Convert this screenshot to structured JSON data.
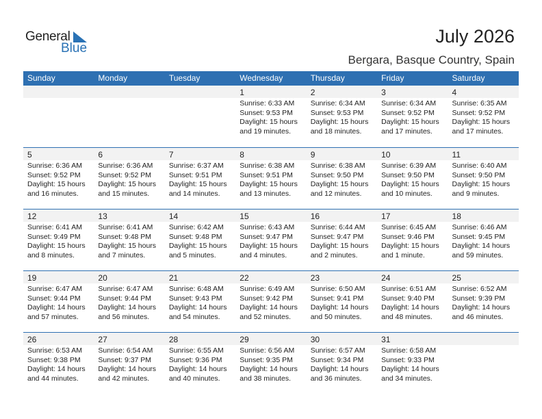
{
  "logo": {
    "general": "General",
    "blue": "Blue"
  },
  "header": {
    "title": "July 2026",
    "location": "Bergara, Basque Country, Spain"
  },
  "colors": {
    "accent": "#2e70b2",
    "daystrip": "#f2f2f2"
  },
  "weekdays": [
    "Sunday",
    "Monday",
    "Tuesday",
    "Wednesday",
    "Thursday",
    "Friday",
    "Saturday"
  ],
  "weeks": [
    [
      null,
      null,
      null,
      {
        "day": "1",
        "sunrise": "Sunrise: 6:33 AM",
        "sunset": "Sunset: 9:53 PM",
        "daylight1": "Daylight: 15 hours",
        "daylight2": "and 19 minutes."
      },
      {
        "day": "2",
        "sunrise": "Sunrise: 6:34 AM",
        "sunset": "Sunset: 9:53 PM",
        "daylight1": "Daylight: 15 hours",
        "daylight2": "and 18 minutes."
      },
      {
        "day": "3",
        "sunrise": "Sunrise: 6:34 AM",
        "sunset": "Sunset: 9:52 PM",
        "daylight1": "Daylight: 15 hours",
        "daylight2": "and 17 minutes."
      },
      {
        "day": "4",
        "sunrise": "Sunrise: 6:35 AM",
        "sunset": "Sunset: 9:52 PM",
        "daylight1": "Daylight: 15 hours",
        "daylight2": "and 17 minutes."
      }
    ],
    [
      {
        "day": "5",
        "sunrise": "Sunrise: 6:36 AM",
        "sunset": "Sunset: 9:52 PM",
        "daylight1": "Daylight: 15 hours",
        "daylight2": "and 16 minutes."
      },
      {
        "day": "6",
        "sunrise": "Sunrise: 6:36 AM",
        "sunset": "Sunset: 9:52 PM",
        "daylight1": "Daylight: 15 hours",
        "daylight2": "and 15 minutes."
      },
      {
        "day": "7",
        "sunrise": "Sunrise: 6:37 AM",
        "sunset": "Sunset: 9:51 PM",
        "daylight1": "Daylight: 15 hours",
        "daylight2": "and 14 minutes."
      },
      {
        "day": "8",
        "sunrise": "Sunrise: 6:38 AM",
        "sunset": "Sunset: 9:51 PM",
        "daylight1": "Daylight: 15 hours",
        "daylight2": "and 13 minutes."
      },
      {
        "day": "9",
        "sunrise": "Sunrise: 6:38 AM",
        "sunset": "Sunset: 9:50 PM",
        "daylight1": "Daylight: 15 hours",
        "daylight2": "and 12 minutes."
      },
      {
        "day": "10",
        "sunrise": "Sunrise: 6:39 AM",
        "sunset": "Sunset: 9:50 PM",
        "daylight1": "Daylight: 15 hours",
        "daylight2": "and 10 minutes."
      },
      {
        "day": "11",
        "sunrise": "Sunrise: 6:40 AM",
        "sunset": "Sunset: 9:50 PM",
        "daylight1": "Daylight: 15 hours",
        "daylight2": "and 9 minutes."
      }
    ],
    [
      {
        "day": "12",
        "sunrise": "Sunrise: 6:41 AM",
        "sunset": "Sunset: 9:49 PM",
        "daylight1": "Daylight: 15 hours",
        "daylight2": "and 8 minutes."
      },
      {
        "day": "13",
        "sunrise": "Sunrise: 6:41 AM",
        "sunset": "Sunset: 9:48 PM",
        "daylight1": "Daylight: 15 hours",
        "daylight2": "and 7 minutes."
      },
      {
        "day": "14",
        "sunrise": "Sunrise: 6:42 AM",
        "sunset": "Sunset: 9:48 PM",
        "daylight1": "Daylight: 15 hours",
        "daylight2": "and 5 minutes."
      },
      {
        "day": "15",
        "sunrise": "Sunrise: 6:43 AM",
        "sunset": "Sunset: 9:47 PM",
        "daylight1": "Daylight: 15 hours",
        "daylight2": "and 4 minutes."
      },
      {
        "day": "16",
        "sunrise": "Sunrise: 6:44 AM",
        "sunset": "Sunset: 9:47 PM",
        "daylight1": "Daylight: 15 hours",
        "daylight2": "and 2 minutes."
      },
      {
        "day": "17",
        "sunrise": "Sunrise: 6:45 AM",
        "sunset": "Sunset: 9:46 PM",
        "daylight1": "Daylight: 15 hours",
        "daylight2": "and 1 minute."
      },
      {
        "day": "18",
        "sunrise": "Sunrise: 6:46 AM",
        "sunset": "Sunset: 9:45 PM",
        "daylight1": "Daylight: 14 hours",
        "daylight2": "and 59 minutes."
      }
    ],
    [
      {
        "day": "19",
        "sunrise": "Sunrise: 6:47 AM",
        "sunset": "Sunset: 9:44 PM",
        "daylight1": "Daylight: 14 hours",
        "daylight2": "and 57 minutes."
      },
      {
        "day": "20",
        "sunrise": "Sunrise: 6:47 AM",
        "sunset": "Sunset: 9:44 PM",
        "daylight1": "Daylight: 14 hours",
        "daylight2": "and 56 minutes."
      },
      {
        "day": "21",
        "sunrise": "Sunrise: 6:48 AM",
        "sunset": "Sunset: 9:43 PM",
        "daylight1": "Daylight: 14 hours",
        "daylight2": "and 54 minutes."
      },
      {
        "day": "22",
        "sunrise": "Sunrise: 6:49 AM",
        "sunset": "Sunset: 9:42 PM",
        "daylight1": "Daylight: 14 hours",
        "daylight2": "and 52 minutes."
      },
      {
        "day": "23",
        "sunrise": "Sunrise: 6:50 AM",
        "sunset": "Sunset: 9:41 PM",
        "daylight1": "Daylight: 14 hours",
        "daylight2": "and 50 minutes."
      },
      {
        "day": "24",
        "sunrise": "Sunrise: 6:51 AM",
        "sunset": "Sunset: 9:40 PM",
        "daylight1": "Daylight: 14 hours",
        "daylight2": "and 48 minutes."
      },
      {
        "day": "25",
        "sunrise": "Sunrise: 6:52 AM",
        "sunset": "Sunset: 9:39 PM",
        "daylight1": "Daylight: 14 hours",
        "daylight2": "and 46 minutes."
      }
    ],
    [
      {
        "day": "26",
        "sunrise": "Sunrise: 6:53 AM",
        "sunset": "Sunset: 9:38 PM",
        "daylight1": "Daylight: 14 hours",
        "daylight2": "and 44 minutes."
      },
      {
        "day": "27",
        "sunrise": "Sunrise: 6:54 AM",
        "sunset": "Sunset: 9:37 PM",
        "daylight1": "Daylight: 14 hours",
        "daylight2": "and 42 minutes."
      },
      {
        "day": "28",
        "sunrise": "Sunrise: 6:55 AM",
        "sunset": "Sunset: 9:36 PM",
        "daylight1": "Daylight: 14 hours",
        "daylight2": "and 40 minutes."
      },
      {
        "day": "29",
        "sunrise": "Sunrise: 6:56 AM",
        "sunset": "Sunset: 9:35 PM",
        "daylight1": "Daylight: 14 hours",
        "daylight2": "and 38 minutes."
      },
      {
        "day": "30",
        "sunrise": "Sunrise: 6:57 AM",
        "sunset": "Sunset: 9:34 PM",
        "daylight1": "Daylight: 14 hours",
        "daylight2": "and 36 minutes."
      },
      {
        "day": "31",
        "sunrise": "Sunrise: 6:58 AM",
        "sunset": "Sunset: 9:33 PM",
        "daylight1": "Daylight: 14 hours",
        "daylight2": "and 34 minutes."
      },
      null
    ]
  ]
}
